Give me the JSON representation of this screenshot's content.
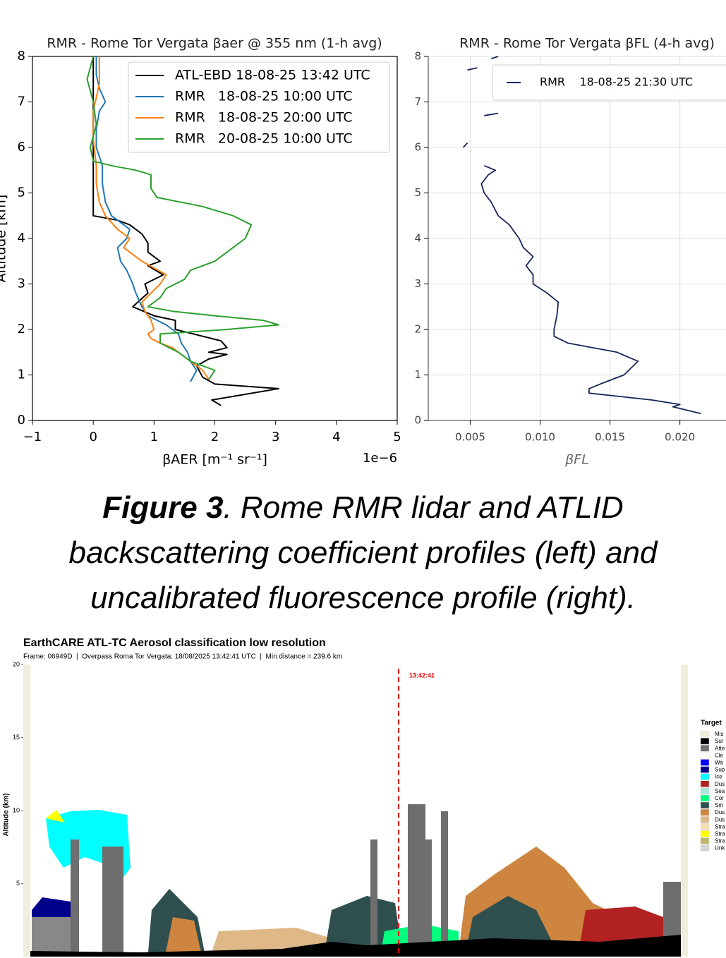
{
  "chart_data": [
    {
      "type": "line",
      "title": "RMR - Rome Tor Vergata βaer @ 355 nm (1-h avg)",
      "xlabel": "βAER [m⁻¹ sr⁻¹]",
      "ylabel": "Altitude [km]",
      "x_offset_label": "1e−6",
      "xlim": [
        -1,
        5
      ],
      "xticks": [
        {
          "value": -1,
          "label": "−1"
        },
        0,
        1,
        2,
        3,
        4,
        5
      ],
      "ylim": [
        0,
        8
      ],
      "yticks": [
        0,
        1,
        2,
        3,
        4,
        5,
        6,
        7,
        8
      ],
      "grid": false,
      "legend": "upper right",
      "series": [
        {
          "name": "ATL-EBD 18-08-25 13:42 UTC",
          "color": "#000000",
          "altitude": [
            0.33,
            0.45,
            0.7,
            0.8,
            0.95,
            1.2,
            1.35,
            1.45,
            1.5,
            1.6,
            1.75,
            2.0,
            2.2,
            2.3,
            2.5,
            2.8,
            3.0,
            3.2,
            3.4,
            3.5,
            3.7,
            3.9,
            4.1,
            4.3,
            4.4,
            4.5,
            5.5,
            8.0
          ],
          "values": [
            2.1,
            1.95,
            3.05,
            2.0,
            1.8,
            1.7,
            1.9,
            2.2,
            1.9,
            2.2,
            2.1,
            1.35,
            1.35,
            1.0,
            0.65,
            0.9,
            0.85,
            1.15,
            0.9,
            1.1,
            0.9,
            0.9,
            0.8,
            0.6,
            0.4,
            0.0,
            0.0,
            0.0
          ]
        },
        {
          "name": "RMR   18-08-25 10:00 UTC",
          "color": "#1f77b4",
          "altitude": [
            0.85,
            1.1,
            1.3,
            1.5,
            1.7,
            1.9,
            2.1,
            2.3,
            2.5,
            2.8,
            3.0,
            3.3,
            3.5,
            3.8,
            4.0,
            4.2,
            4.5,
            4.8,
            5.2,
            5.6,
            6.0,
            6.4,
            6.8,
            7.0,
            7.3,
            7.6,
            8.0
          ],
          "values": [
            1.6,
            1.7,
            1.6,
            1.55,
            1.45,
            1.4,
            1.2,
            0.9,
            0.8,
            0.7,
            0.65,
            0.55,
            0.45,
            0.4,
            0.55,
            0.6,
            0.3,
            0.2,
            0.15,
            0.15,
            0.05,
            0.05,
            0.1,
            0.2,
            0.1,
            0.05,
            0.05
          ]
        },
        {
          "name": "RMR   18-08-25 20:00 UTC",
          "color": "#ff7f0e",
          "altitude": [
            0.9,
            1.1,
            1.3,
            1.6,
            1.7,
            1.8,
            1.9,
            2.0,
            2.2,
            2.4,
            2.6,
            2.8,
            3.0,
            3.2,
            3.5,
            3.8,
            4.0,
            4.2,
            4.5,
            4.8,
            5.2,
            5.6,
            6.2,
            6.8,
            7.4,
            8.0
          ],
          "values": [
            1.9,
            1.8,
            1.6,
            1.3,
            1.1,
            0.95,
            0.9,
            1.0,
            0.95,
            0.85,
            0.8,
            0.95,
            1.1,
            1.2,
            0.8,
            0.5,
            0.6,
            0.4,
            0.2,
            0.1,
            0.05,
            0.05,
            0.0,
            0.0,
            0.1,
            0.1
          ]
        },
        {
          "name": "RMR   20-08-25 10:00 UTC",
          "color": "#2ca02c",
          "altitude": [
            0.9,
            1.1,
            1.3,
            1.5,
            1.7,
            1.9,
            2.0,
            2.1,
            2.2,
            2.3,
            2.4,
            2.5,
            2.7,
            2.9,
            3.1,
            3.3,
            3.5,
            3.8,
            4.0,
            4.3,
            4.5,
            4.7,
            4.9,
            5.1,
            5.4,
            5.5,
            5.6,
            5.7,
            6.0,
            6.5,
            7.0,
            7.5,
            8.0
          ],
          "values": [
            1.9,
            2.0,
            1.6,
            1.4,
            1.1,
            1.1,
            2.2,
            3.05,
            2.8,
            2.0,
            1.3,
            0.9,
            1.1,
            1.2,
            1.5,
            1.6,
            2.0,
            2.3,
            2.5,
            2.6,
            2.3,
            1.8,
            1.05,
            0.95,
            0.95,
            0.7,
            0.3,
            0.0,
            -0.05,
            0.05,
            0.0,
            -0.1,
            0.0
          ]
        }
      ]
    },
    {
      "type": "line",
      "title": "RMR - Rome Tor Vergata βFL (4-h avg)",
      "xlabel": "βFL",
      "xlim": [
        0.002,
        0.0235
      ],
      "xticks": [
        0.005,
        {
          "value": 0.01,
          "label": "0.010"
        },
        0.015,
        {
          "value": 0.02,
          "label": "0.020"
        }
      ],
      "ylim": [
        0,
        8
      ],
      "yticks": [
        0,
        1,
        2,
        3,
        4,
        5,
        6,
        7,
        8
      ],
      "grid": true,
      "legend": "upper right",
      "series": [
        {
          "name": "RMR    18-08-25 21:30 UTC",
          "color": "#16255a",
          "altitude": [
            0.15,
            0.3,
            0.35,
            0.45,
            0.55,
            0.6,
            0.7,
            0.8,
            1.0,
            1.3,
            1.5,
            1.7,
            1.85,
            2.0,
            2.3,
            2.6,
            2.8,
            3.0,
            3.2,
            3.4,
            3.6,
            3.8,
            4.0,
            4.3,
            4.5,
            4.8,
            5.0,
            5.2,
            5.4,
            5.5,
            5.6,
            null,
            6.0,
            6.1,
            null,
            6.7,
            6.75,
            null,
            7.7,
            7.75,
            null,
            7.95,
            8.0
          ],
          "values": [
            0.0215,
            0.0195,
            0.02,
            0.018,
            0.015,
            0.0135,
            0.0135,
            0.0143,
            0.016,
            0.017,
            0.0155,
            0.012,
            0.011,
            0.011,
            0.0112,
            0.0113,
            0.0105,
            0.0095,
            0.0095,
            0.009,
            0.0095,
            0.0088,
            0.0085,
            0.0078,
            0.007,
            0.0065,
            0.006,
            0.0058,
            0.0063,
            0.0068,
            0.006,
            null,
            0.0045,
            0.0048,
            null,
            0.006,
            0.007,
            null,
            0.0048,
            0.0055,
            null,
            0.0065,
            0.007
          ]
        }
      ]
    },
    {
      "type": "curtain",
      "title": "EarthCARE ATL-TC Aerosol classification low resolution",
      "subtitle": "Frame: 06949D  |  Overpass Roma Tor Vergata: 18/08/2025 13:42:41 UTC  |  Min distance = 239.6 km",
      "ylabel": "Altitude (km)",
      "ylim": [
        0,
        20
      ],
      "yticks": [
        5,
        10,
        15,
        20
      ],
      "annotation": "13:42:41",
      "legend_title": "Target",
      "classes": [
        {
          "name": "Mis",
          "color": "#efeedd"
        },
        {
          "name": "Sur",
          "color": "#000000"
        },
        {
          "name": "Atte",
          "color": "#6e6e6e"
        },
        {
          "name": "Cle",
          "color": "#ffffff"
        },
        {
          "name": "Wa",
          "color": "#0000ff"
        },
        {
          "name": "Sup",
          "color": "#00008b"
        },
        {
          "name": "Ice",
          "color": "#00ffff"
        },
        {
          "name": "Dus",
          "color": "#b22222"
        },
        {
          "name": "Sea",
          "color": "#a8e6d8"
        },
        {
          "name": "Cor",
          "color": "#00ff7f"
        },
        {
          "name": "Sm",
          "color": "#2f4f4f"
        },
        {
          "name": "Dus",
          "color": "#cd853f"
        },
        {
          "name": "Dus",
          "color": "#deb887"
        },
        {
          "name": "Stra",
          "color": "#f5deb3"
        },
        {
          "name": "Stra",
          "color": "#ffff00"
        },
        {
          "name": "Stra",
          "color": "#bdb76b"
        },
        {
          "name": "Unk",
          "color": "#d3d3d3"
        }
      ]
    }
  ],
  "caption": {
    "label": "Figure 3",
    "text": ". Rome RMR lidar and ATLID backscattering coefficient profiles (left) and uncalibrated fluorescence profile (right)."
  }
}
